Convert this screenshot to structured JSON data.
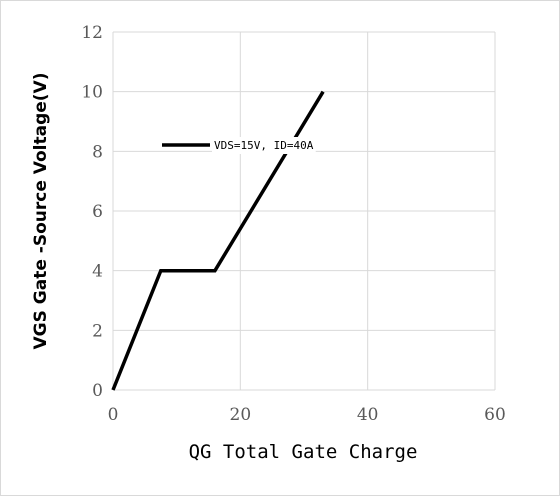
{
  "chart_data": {
    "type": "line",
    "title": "",
    "xlabel": "QG Total Gate Charge",
    "ylabel": "VGS Gate -Source Voltage(V)",
    "xlim": [
      0,
      60
    ],
    "ylim": [
      0,
      12
    ],
    "xticks": [
      0,
      20,
      40,
      60
    ],
    "yticks": [
      0,
      2,
      4,
      6,
      8,
      10,
      12
    ],
    "grid": true,
    "legend_position": "upper-left",
    "series": [
      {
        "name": "VDS=15V, ID=40A",
        "color": "#000000",
        "x": [
          0,
          7.5,
          16,
          33
        ],
        "y": [
          0,
          4,
          4,
          10
        ]
      }
    ]
  }
}
